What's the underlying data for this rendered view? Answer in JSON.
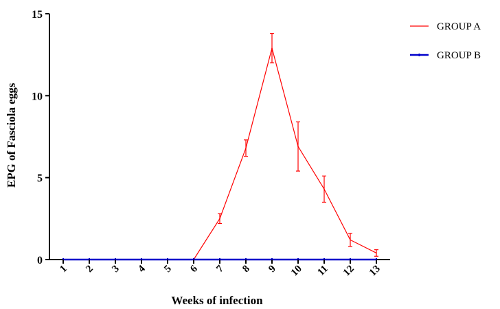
{
  "chart_data": {
    "type": "line",
    "xlabel": "Weeks of infection",
    "ylabel": "EPG of Fasciola eggs",
    "categories": [
      "1",
      "2",
      "3",
      "4",
      "5",
      "6",
      "7",
      "8",
      "9",
      "10",
      "11",
      "12",
      "13"
    ],
    "ylim": [
      0,
      15
    ],
    "yticks": [
      0,
      5,
      10,
      15
    ],
    "grid": false,
    "legend": "right",
    "series": [
      {
        "name": "GROUP A",
        "color": "#ff0000",
        "values": [
          0,
          0,
          0,
          0,
          0,
          0,
          2.5,
          6.8,
          12.9,
          6.9,
          4.3,
          1.2,
          0.4
        ],
        "error": [
          0,
          0,
          0,
          0,
          0,
          0,
          0.3,
          0.5,
          0.9,
          1.5,
          0.8,
          0.4,
          0.2
        ]
      },
      {
        "name": "GROUP B",
        "color": "#0000cc",
        "values": [
          0,
          0,
          0,
          0,
          0,
          0,
          0,
          0,
          0,
          0,
          0,
          0,
          0
        ],
        "error": [
          0,
          0,
          0,
          0,
          0,
          0,
          0,
          0,
          0,
          0,
          0,
          0,
          0
        ]
      }
    ]
  }
}
